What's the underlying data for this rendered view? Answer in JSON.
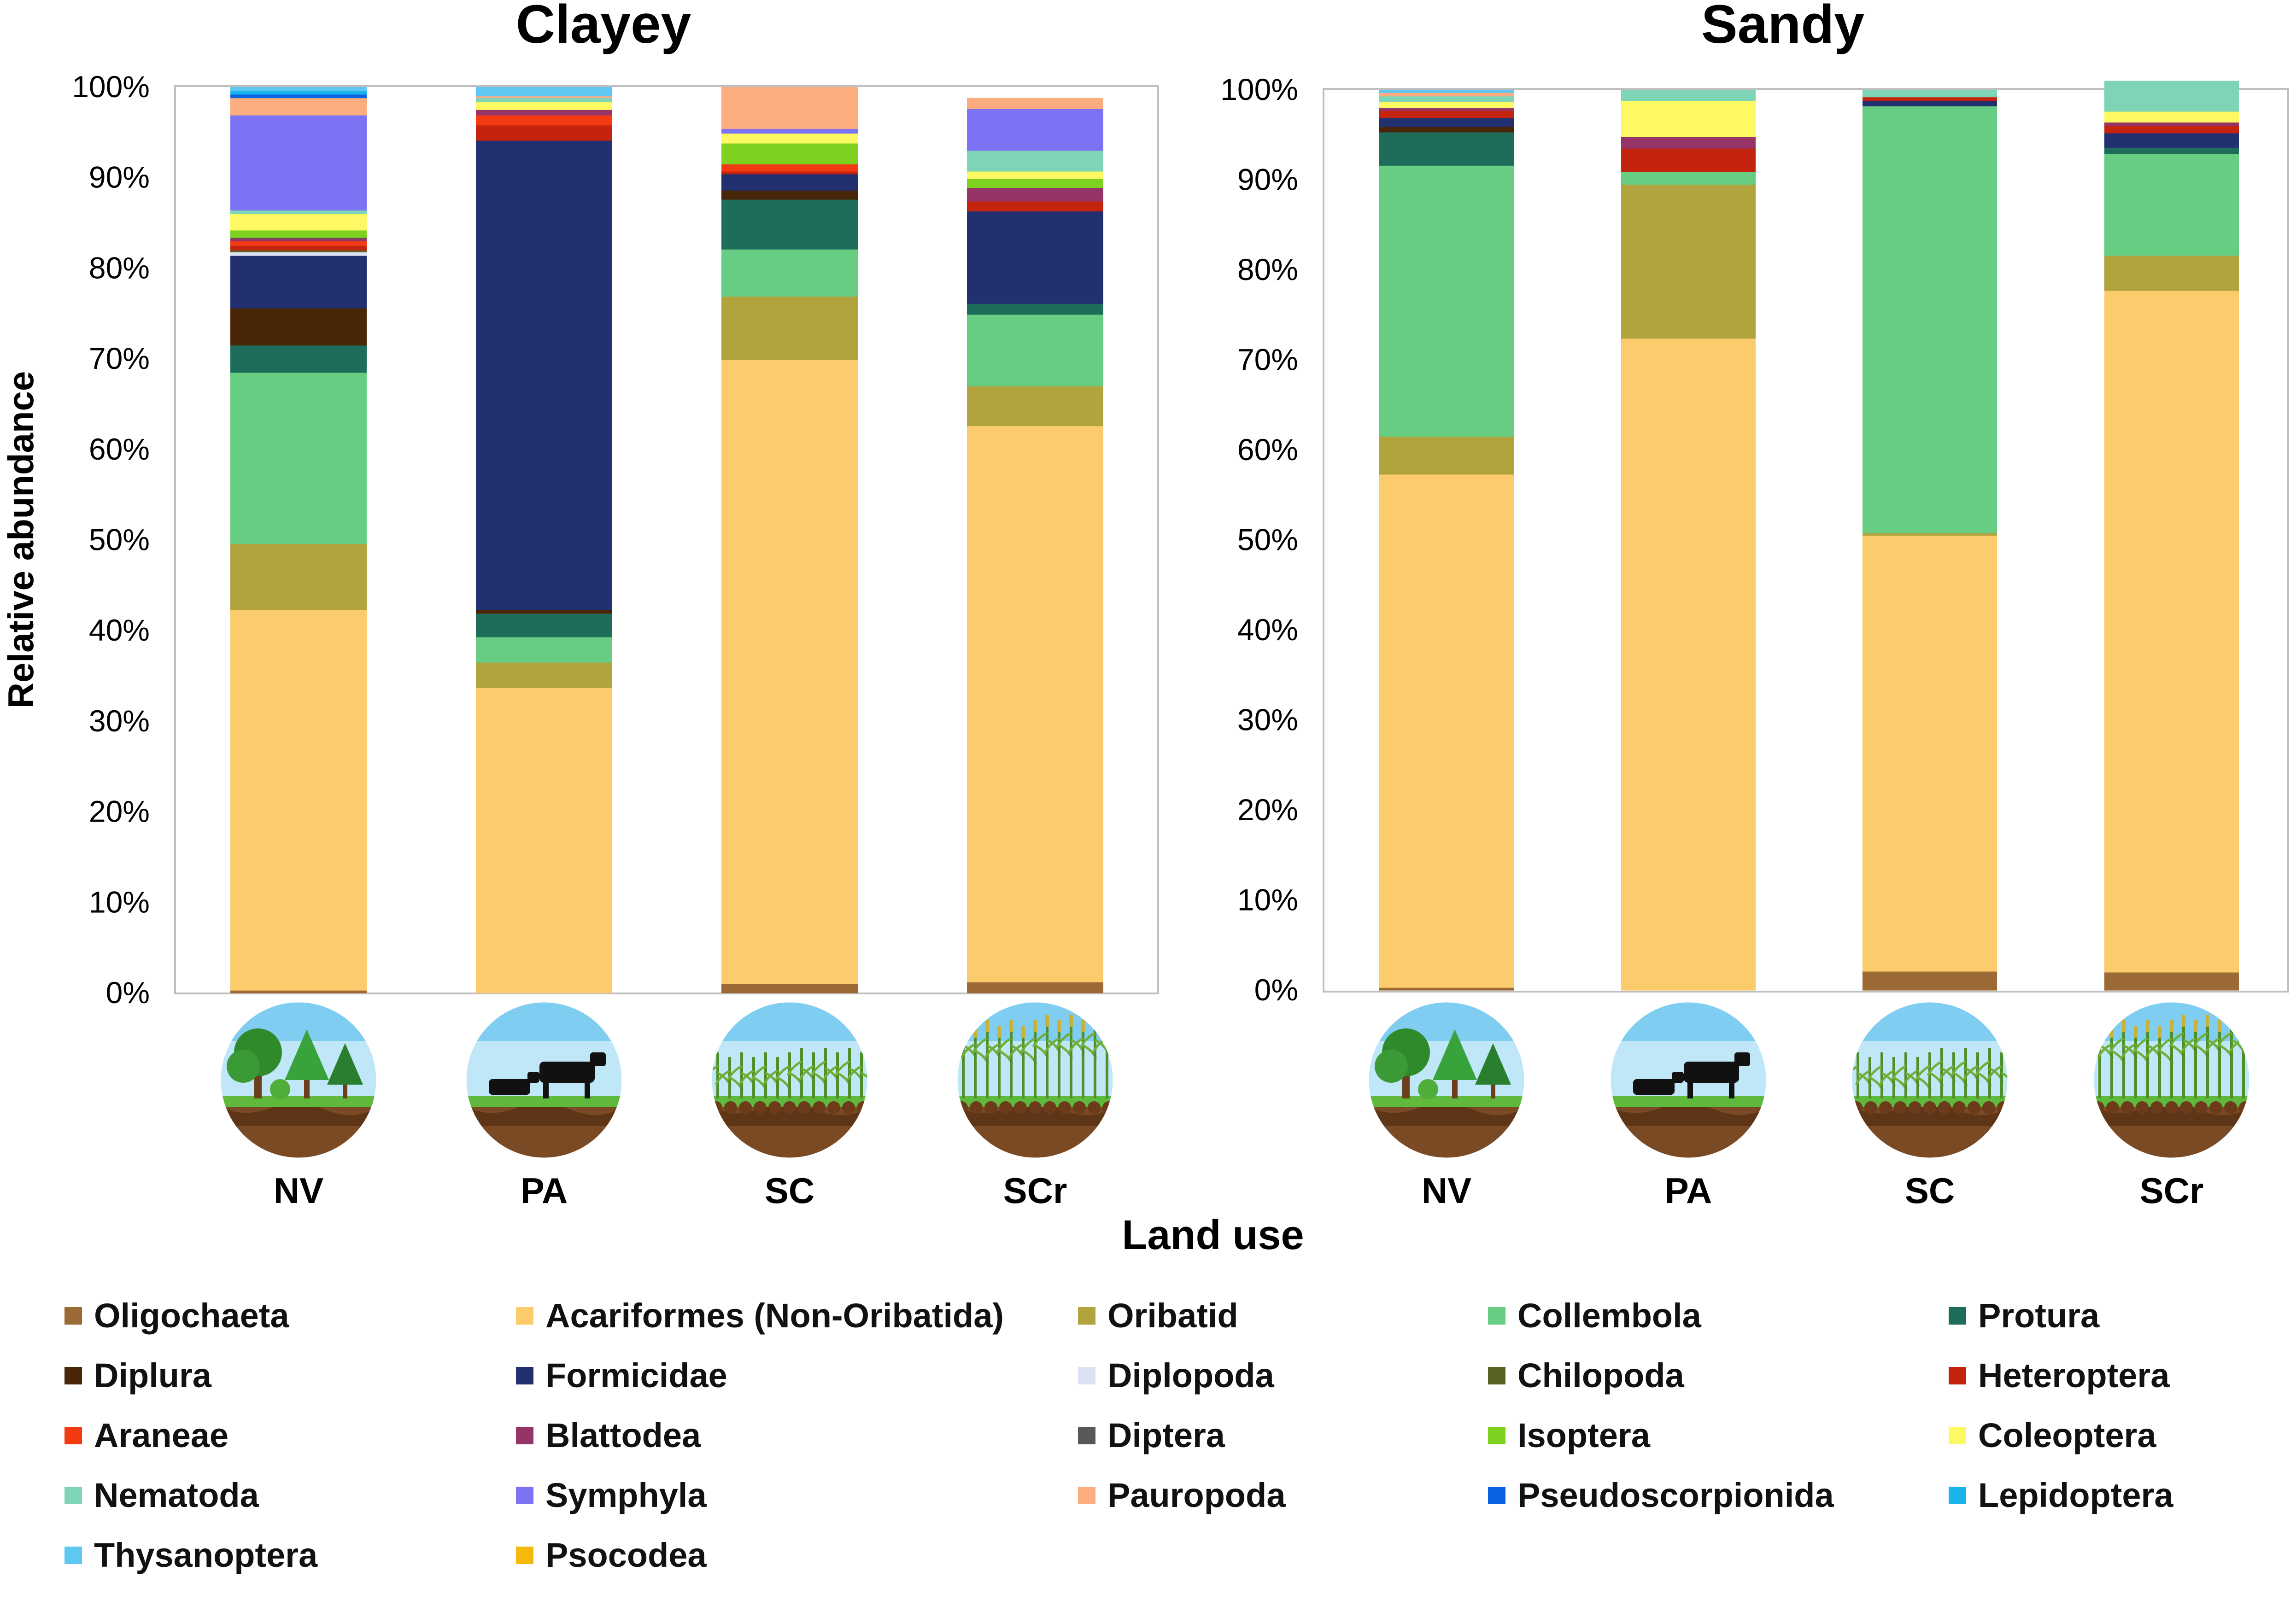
{
  "chart_data": {
    "type": "bar",
    "stacked": true,
    "xlabel": "Land use",
    "ylabel": "Relative abundance",
    "ylim": [
      0,
      100
    ],
    "yticks": [
      "0%",
      "10%",
      "20%",
      "30%",
      "40%",
      "50%",
      "60%",
      "70%",
      "80%",
      "90%",
      "100%"
    ],
    "categories": [
      "NV",
      "PA",
      "SC",
      "SCr"
    ],
    "taxa": [
      {
        "name": "Oligochaeta",
        "color": "#9b6a35"
      },
      {
        "name": "Acariformes (Non-Oribatida)",
        "color": "#fccb6c"
      },
      {
        "name": "Oribatid",
        "color": "#b1a33e"
      },
      {
        "name": "Collembola",
        "color": "#67cd83"
      },
      {
        "name": "Protura",
        "color": "#1e6c5a"
      },
      {
        "name": "Diplura",
        "color": "#4a2609"
      },
      {
        "name": "Formicidae",
        "color": "#22306f"
      },
      {
        "name": "Diplopoda",
        "color": "#dce1f4"
      },
      {
        "name": "Chilopoda",
        "color": "#5b6225"
      },
      {
        "name": "Heteroptera",
        "color": "#c4230e"
      },
      {
        "name": "Araneae",
        "color": "#f23a13"
      },
      {
        "name": "Blattodea",
        "color": "#973467"
      },
      {
        "name": "Diptera",
        "color": "#585858"
      },
      {
        "name": "Isoptera",
        "color": "#7fd11f"
      },
      {
        "name": "Coleoptera",
        "color": "#fdf962"
      },
      {
        "name": "Nematoda",
        "color": "#7dd5b5"
      },
      {
        "name": "Symphyla",
        "color": "#7b72f4"
      },
      {
        "name": "Pauropoda",
        "color": "#fbad7f"
      },
      {
        "name": "Pseudoscorpionida",
        "color": "#0a63e3"
      },
      {
        "name": "Lepidoptera",
        "color": "#1ab4ec"
      },
      {
        "name": "Thysanoptera",
        "color": "#5ec8f2"
      },
      {
        "name": "Psocodea",
        "color": "#f5b80d"
      }
    ],
    "panels": [
      {
        "title": "Clayey",
        "bars": [
          {
            "category": "NV",
            "values": [
              0.3,
              42.0,
              7.3,
              18.9,
              3.0,
              4.1,
              5.8,
              0.4,
              0.2,
              0.5,
              0.5,
              0.3,
              0.1,
              0.8,
              1.8,
              0.4,
              10.5,
              1.9,
              0.4,
              0.4,
              0.4,
              0.0
            ]
          },
          {
            "category": "PA",
            "values": [
              0.0,
              33.7,
              2.8,
              2.8,
              2.6,
              0.4,
              51.8,
              0.0,
              0.0,
              1.7,
              1.1,
              0.6,
              0.0,
              0.0,
              0.9,
              0.4,
              0.0,
              0.2,
              0.0,
              0.0,
              1.0,
              0.0
            ]
          },
          {
            "category": "SC",
            "values": [
              1.0,
              68.9,
              7.0,
              5.2,
              5.5,
              1.0,
              1.8,
              0.0,
              0.0,
              0.3,
              0.8,
              0.0,
              0.0,
              2.3,
              1.1,
              0.0,
              0.5,
              4.6,
              0.0,
              0.0,
              0.0,
              0.0
            ]
          },
          {
            "category": "SCr",
            "values": [
              1.2,
              61.4,
              4.4,
              7.9,
              1.2,
              0.0,
              10.2,
              0.0,
              0.0,
              1.1,
              0.0,
              1.5,
              0.0,
              1.0,
              0.8,
              2.3,
              4.6,
              1.2,
              0.0,
              0.0,
              0.0,
              0.0
            ]
          }
        ]
      },
      {
        "title": "Sandy",
        "bars": [
          {
            "category": "NV",
            "values": [
              0.3,
              57.0,
              4.2,
              30.1,
              3.7,
              0.6,
              1.0,
              0.0,
              0.0,
              0.8,
              0.0,
              0.3,
              0.0,
              0.0,
              0.7,
              0.6,
              0.0,
              0.4,
              0.0,
              0.0,
              0.3,
              0.0
            ]
          },
          {
            "category": "PA",
            "values": [
              0.0,
              72.4,
              17.1,
              1.4,
              0.0,
              0.0,
              0.0,
              0.0,
              0.0,
              2.6,
              0.0,
              1.3,
              0.0,
              0.0,
              4.0,
              1.2,
              0.0,
              0.0,
              0.0,
              0.0,
              0.0,
              0.0
            ]
          },
          {
            "category": "SC",
            "values": [
              2.1,
              48.4,
              0.3,
              47.4,
              0.0,
              0.0,
              0.6,
              0.0,
              0.0,
              0.4,
              0.0,
              0.0,
              0.0,
              0.0,
              0.0,
              0.8,
              0.0,
              0.0,
              0.0,
              0.0,
              0.0,
              0.0
            ]
          },
          {
            "category": "SCr",
            "values": [
              2.0,
              75.7,
              3.9,
              11.3,
              0.7,
              0.0,
              1.6,
              0.0,
              0.0,
              0.8,
              0.0,
              0.4,
              0.0,
              0.0,
              1.2,
              3.4,
              0.0,
              0.0,
              0.0,
              0.0,
              0.0,
              0.0
            ]
          }
        ]
      }
    ]
  }
}
